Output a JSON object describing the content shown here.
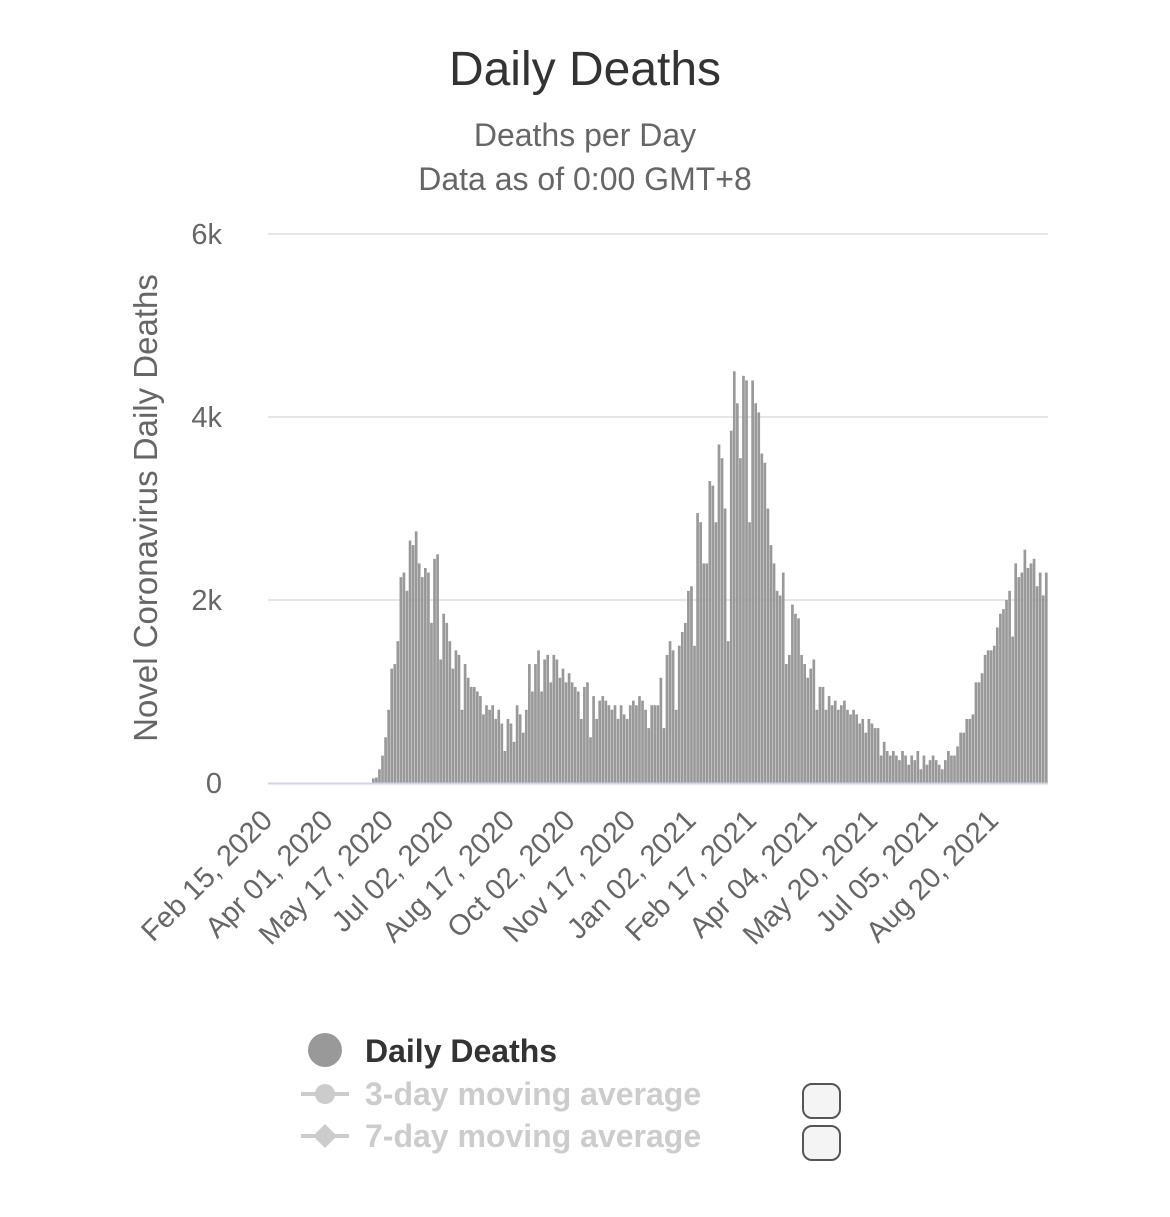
{
  "chart_data": {
    "type": "bar",
    "title": "Daily Deaths",
    "subtitle_lines": [
      "Deaths per Day",
      "Data as of 0:00 GMT+8"
    ],
    "ylabel": "Novel Coronavirus Daily Deaths",
    "ylim": [
      0,
      6000
    ],
    "y_ticks": [
      0,
      2000,
      4000,
      6000
    ],
    "y_tick_labels": [
      "0",
      "2k",
      "4k",
      "6k"
    ],
    "x_tick_labels": [
      "Feb 15, 2020",
      "Apr 01, 2020",
      "May 17, 2020",
      "Jul 02, 2020",
      "Aug 17, 2020",
      "Oct 02, 2020",
      "Nov 17, 2020",
      "Jan 02, 2021",
      "Feb 17, 2021",
      "Apr 04, 2021",
      "May 20, 2021",
      "Jul 05, 2021",
      "Aug 20, 2021"
    ],
    "x_start": "Feb 15, 2020",
    "bar_color": "#999999",
    "grid": true,
    "legend_placement": "bottom",
    "series": [
      {
        "name": "Daily Deaths",
        "color": "#999999",
        "visible": true,
        "values": [
          0,
          0,
          0,
          0,
          0,
          0,
          0,
          0,
          0,
          0,
          0,
          0,
          0,
          0,
          0,
          0,
          0,
          0,
          0,
          0,
          0,
          0,
          0,
          0,
          0,
          0,
          0,
          0,
          0,
          0,
          0,
          0,
          0,
          0,
          50,
          60,
          150,
          300,
          500,
          800,
          1250,
          1300,
          1550,
          2250,
          2300,
          2100,
          2650,
          2600,
          2750,
          2400,
          2250,
          2350,
          2300,
          1750,
          2450,
          2500,
          1350,
          1850,
          1750,
          1550,
          1250,
          1450,
          1400,
          800,
          1300,
          1150,
          1050,
          1050,
          1000,
          950,
          750,
          850,
          800,
          850,
          700,
          800,
          650,
          350,
          700,
          650,
          450,
          850,
          750,
          550,
          800,
          1300,
          1000,
          1300,
          1450,
          1000,
          1350,
          1400,
          1100,
          1400,
          1350,
          1150,
          1250,
          1100,
          1200,
          1100,
          1050,
          1000,
          700,
          1050,
          1100,
          500,
          950,
          700,
          900,
          950,
          900,
          850,
          800,
          850,
          700,
          850,
          750,
          700,
          850,
          900,
          850,
          950,
          900,
          800,
          600,
          850,
          850,
          850,
          1150,
          600,
          1400,
          1550,
          1450,
          800,
          1500,
          1650,
          1750,
          2100,
          2150,
          1500,
          2950,
          2850,
          2400,
          2400,
          3300,
          3250,
          2850,
          3700,
          3550,
          3000,
          1550,
          3850,
          4500,
          4150,
          3550,
          4450,
          4400,
          2850,
          4400,
          4150,
          4050,
          3600,
          3500,
          3000,
          2600,
          2400,
          2100,
          2050,
          2300,
          1300,
          1400,
          1950,
          1850,
          1800,
          1400,
          1300,
          1150,
          1250,
          1350,
          800,
          1050,
          1050,
          800,
          950,
          850,
          900,
          800,
          850,
          900,
          800,
          750,
          800,
          750,
          650,
          700,
          550,
          700,
          650,
          600,
          600,
          300,
          450,
          350,
          300,
          350,
          300,
          250,
          350,
          300,
          200,
          300,
          250,
          350,
          150,
          300,
          200,
          250,
          300,
          250,
          200,
          150,
          250,
          350,
          300,
          300,
          400,
          550,
          550,
          700,
          700,
          750,
          1100,
          1100,
          1200,
          1400,
          1450,
          1450,
          1500,
          1700,
          1850,
          1900,
          2000,
          2100,
          1600,
          2400,
          2250,
          2300,
          2550,
          2350,
          2400,
          2450,
          2150,
          2300,
          2050,
          2300
        ]
      },
      {
        "name": "3-day moving average",
        "color": "#cccccc",
        "visible": false
      },
      {
        "name": "7-day moving average",
        "color": "#cccccc",
        "visible": false
      }
    ]
  }
}
